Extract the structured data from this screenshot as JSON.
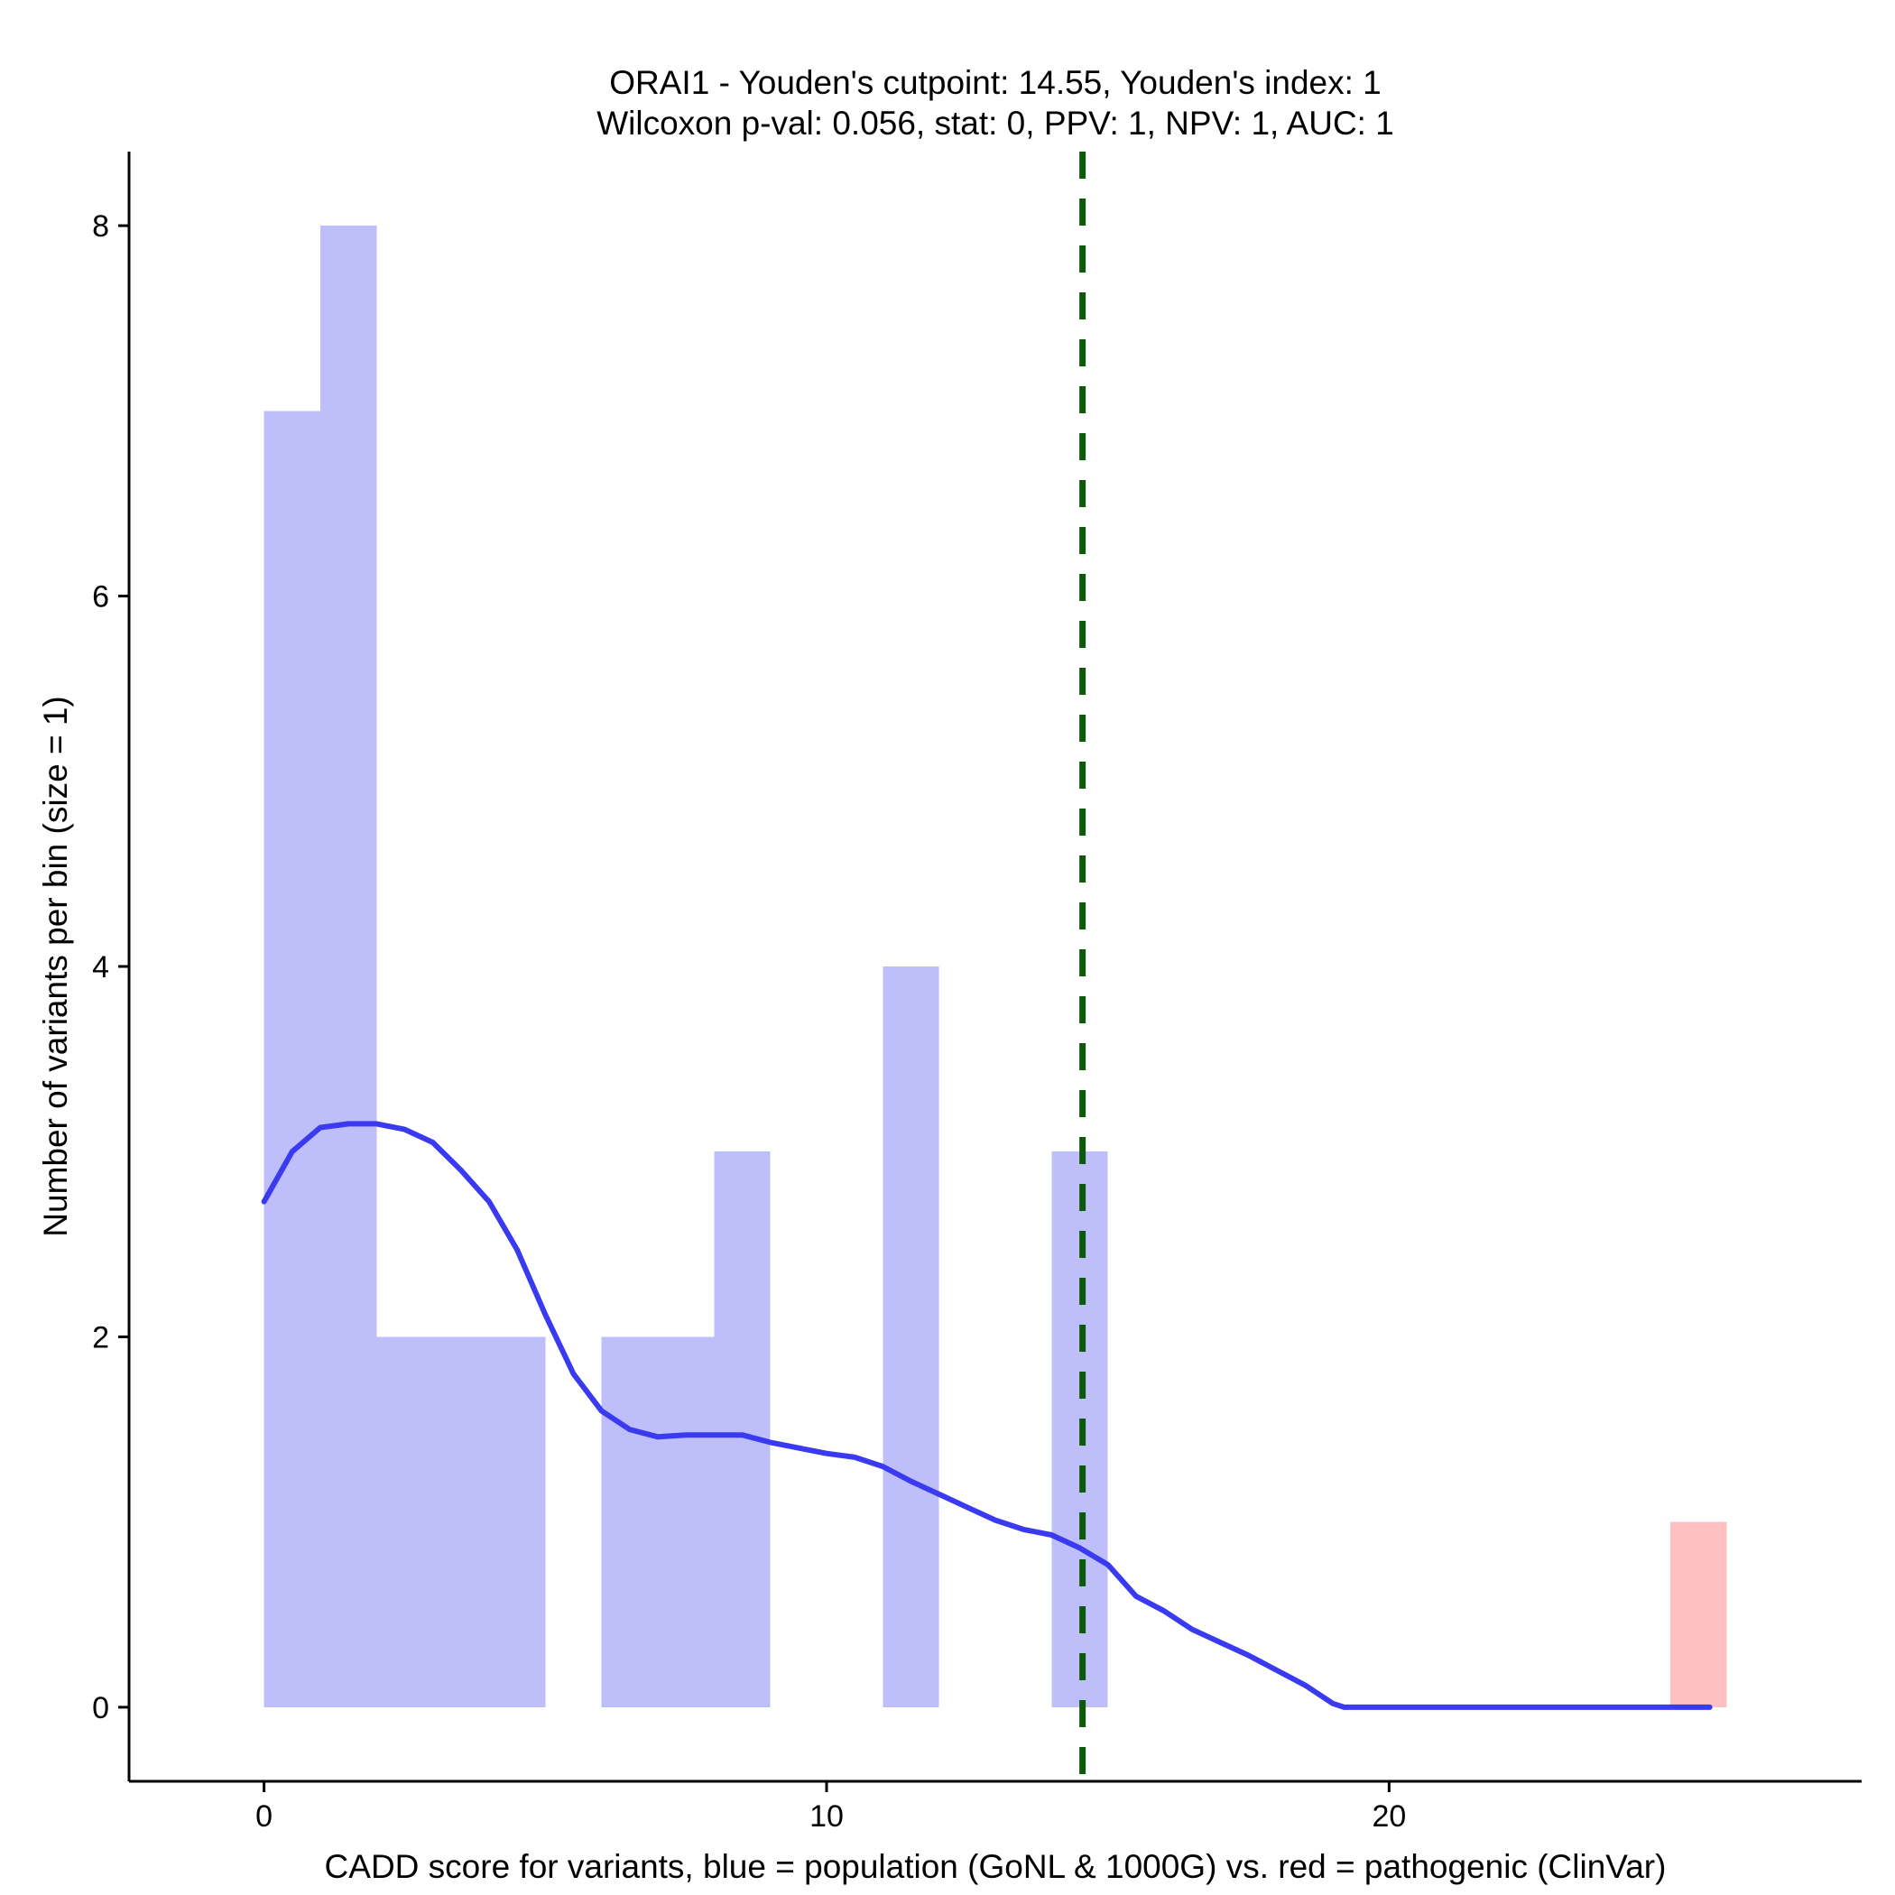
{
  "chart_data": {
    "type": "bar",
    "title_line1": "ORAI1 - Youden's cutpoint: 14.55, Youden's index: 1",
    "title_line2": "Wilcoxon p-val: 0.056, stat: 0, PPV: 1, NPV: 1, AUC: 1",
    "xlabel": "CADD score for variants, blue = population (GoNL & 1000G) vs. red = pathogenic (ClinVar)",
    "ylabel": "Number of variants per bin (size = 1)",
    "xlim": [
      -2.4,
      28.4
    ],
    "ylim": [
      -0.4,
      8.4
    ],
    "x_ticks": [
      0,
      10,
      20
    ],
    "x_tick_labels": [
      "0",
      "10",
      "20"
    ],
    "y_ticks": [
      0,
      2,
      4,
      6,
      8
    ],
    "y_tick_labels": [
      "0",
      "2",
      "4",
      "6",
      "8"
    ],
    "bin_width": 1,
    "series": [
      {
        "name": "population (GoNL & 1000G)",
        "color": "#bebefb",
        "bins": [
          {
            "start": 0,
            "count": 7
          },
          {
            "start": 1,
            "count": 8
          },
          {
            "start": 2,
            "count": 2
          },
          {
            "start": 3,
            "count": 2
          },
          {
            "start": 4,
            "count": 2
          },
          {
            "start": 6,
            "count": 2
          },
          {
            "start": 7,
            "count": 2
          },
          {
            "start": 8,
            "count": 3
          },
          {
            "start": 11,
            "count": 4
          },
          {
            "start": 14,
            "count": 3
          }
        ]
      },
      {
        "name": "pathogenic (ClinVar)",
        "color": "#fec0c0",
        "bins": [
          {
            "start": 25,
            "count": 1
          }
        ]
      }
    ],
    "density_curve": {
      "name": "population density",
      "color": "#3a3af0",
      "x": [
        0,
        0.5,
        1,
        1.5,
        2,
        2.5,
        3,
        3.5,
        4,
        4.5,
        5,
        5.5,
        6,
        6.5,
        7,
        7.5,
        8,
        8.5,
        9,
        9.5,
        10,
        10.5,
        11,
        11.5,
        12,
        12.5,
        13,
        13.5,
        14,
        14.5,
        15,
        15.5,
        16,
        16.5,
        17,
        17.5,
        18,
        18.5,
        19,
        19.2,
        20,
        21,
        22,
        23,
        24,
        25,
        25.7
      ],
      "y": [
        2.73,
        3.0,
        3.13,
        3.15,
        3.15,
        3.12,
        3.05,
        2.9,
        2.73,
        2.47,
        2.12,
        1.8,
        1.6,
        1.5,
        1.46,
        1.47,
        1.47,
        1.47,
        1.43,
        1.4,
        1.37,
        1.35,
        1.3,
        1.22,
        1.15,
        1.08,
        1.01,
        0.96,
        0.93,
        0.86,
        0.77,
        0.6,
        0.52,
        0.42,
        0.35,
        0.28,
        0.2,
        0.12,
        0.02,
        0.0,
        0.0,
        0.0,
        0.0,
        0.0,
        0.0,
        0.0,
        0.0
      ]
    },
    "cutpoint": {
      "x": 14.55,
      "label": "Youden's cutpoint",
      "color": "#0a5a0a",
      "style": "dashed"
    },
    "grid": false,
    "legend": "none"
  }
}
